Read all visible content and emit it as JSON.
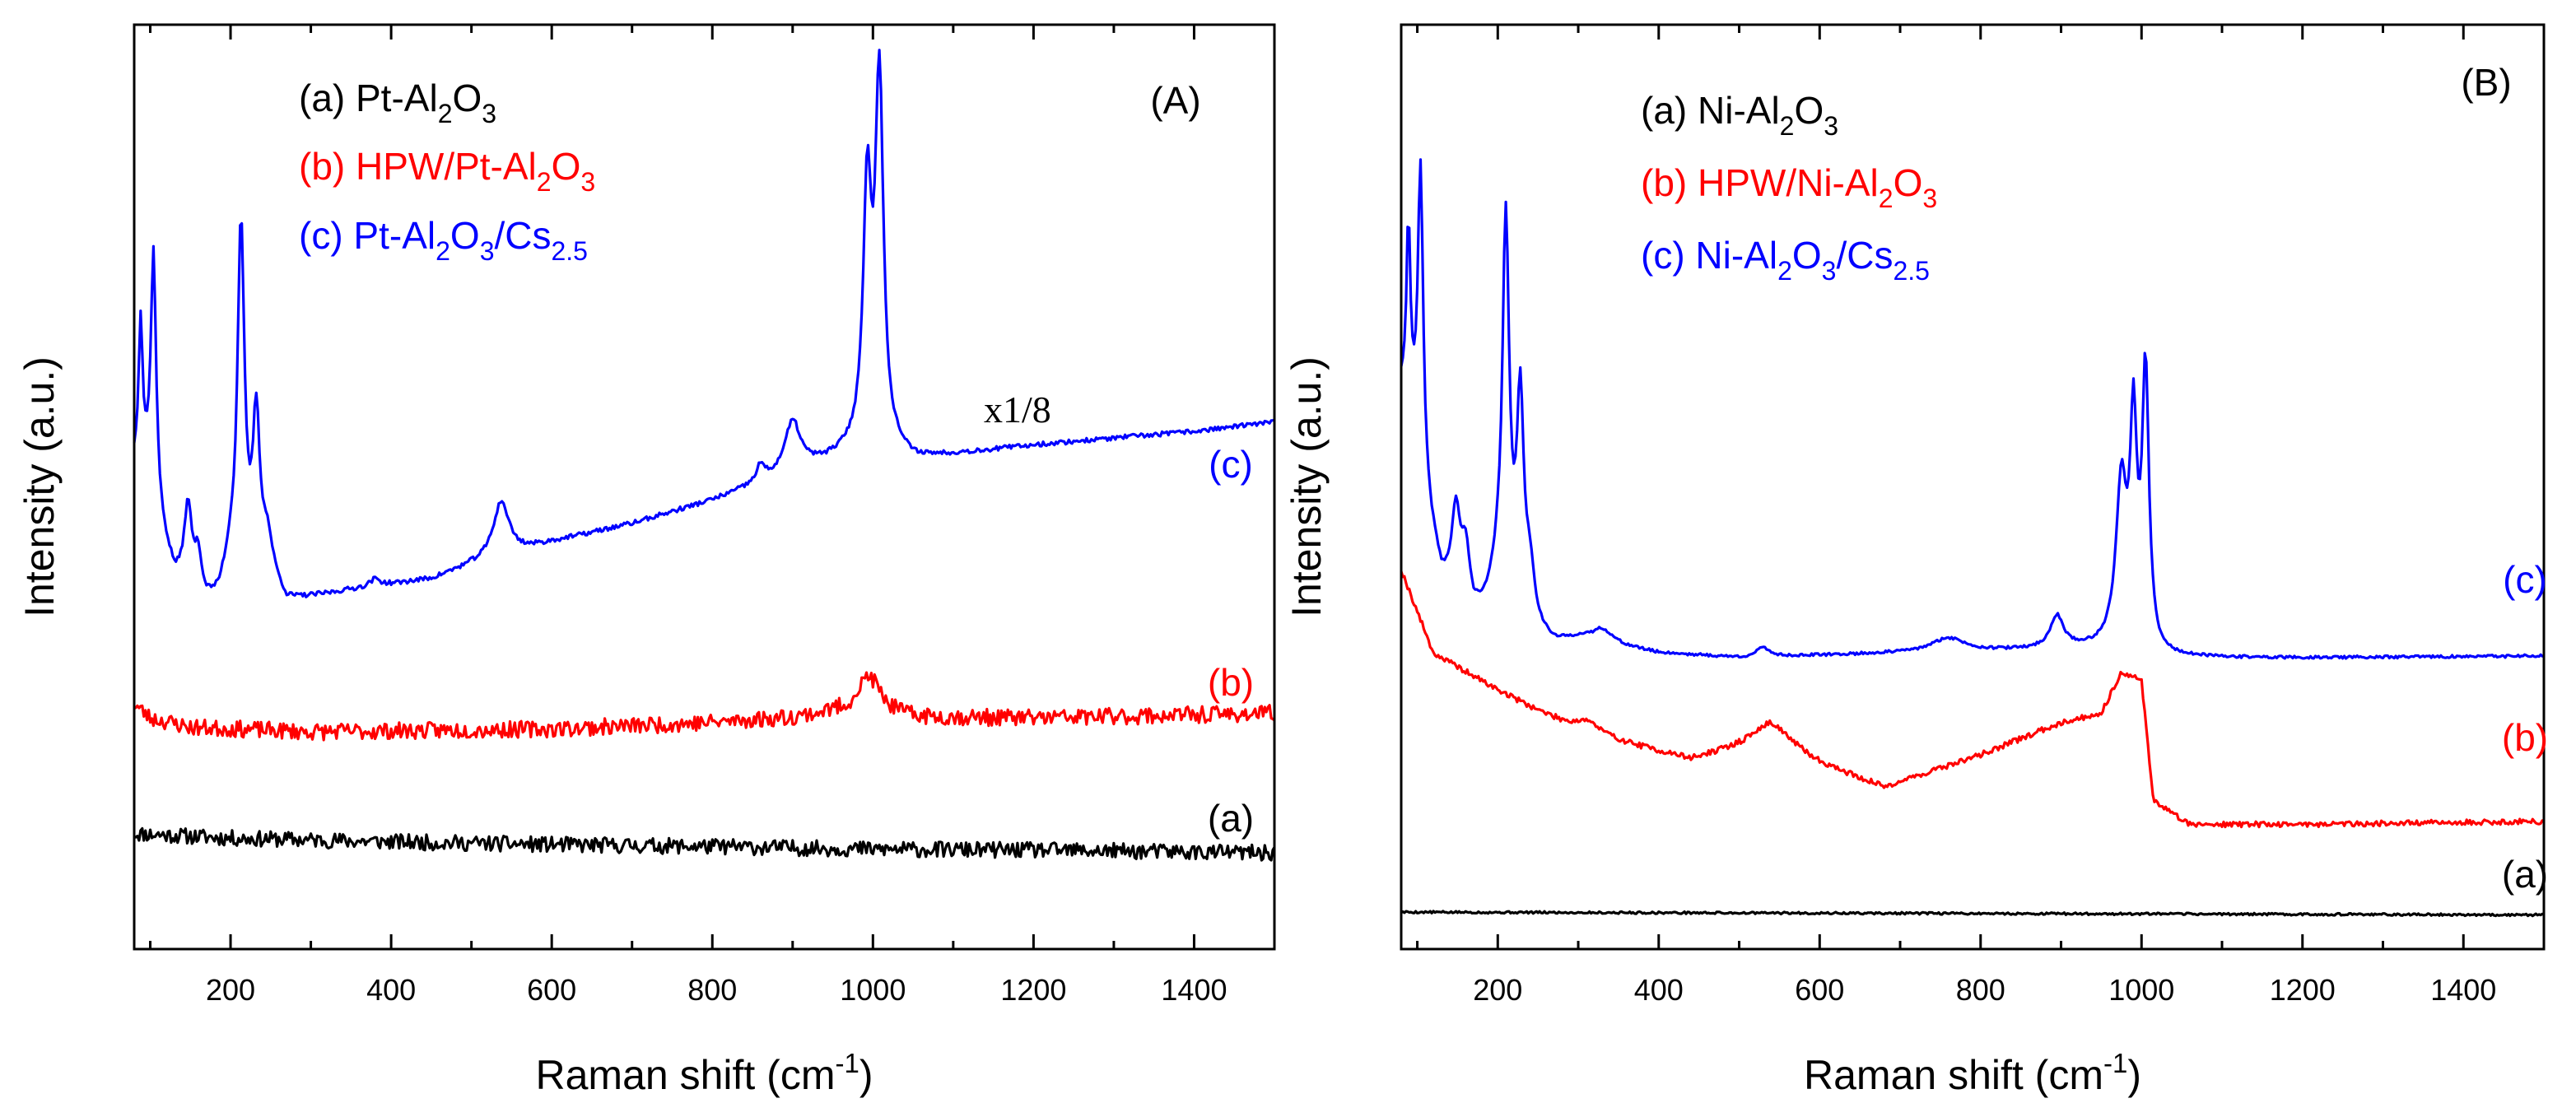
{
  "chart_data": [
    {
      "panel": "(A)",
      "type": "line",
      "xlabel": "Raman shift (cm",
      "xlabel_sup": "-1",
      "xlabel_close": ")",
      "ylabel": "Intensity (a.u.)",
      "xlim": [
        80,
        1500
      ],
      "ylim": [
        0,
        100
      ],
      "xticks": [
        200,
        400,
        600,
        800,
        1000,
        1200,
        1400
      ],
      "y_ticks_shown": false,
      "legend_position": "top-left",
      "legend": [
        {
          "prefix": "(a) Pt-Al",
          "s1": "2",
          "mid": "O",
          "s2": "3",
          "mid2": "",
          "s3": "",
          "color": "#000000"
        },
        {
          "prefix": "(b) HPW/Pt-Al",
          "s1": "2",
          "mid": "O",
          "s2": "3",
          "mid2": "",
          "s3": "",
          "color": "#ff0000"
        },
        {
          "prefix": "(c) Pt-Al",
          "s1": "2",
          "mid": "O",
          "s2": "3",
          "mid2": "/Cs",
          "s3": "2.5",
          "color": "#0000ff"
        }
      ],
      "annotations": [
        {
          "text": "x1/8",
          "at_x": 1180,
          "at_y": 57
        }
      ],
      "series": [
        {
          "name": "(a) Pt-Al2O3",
          "label": "(a)",
          "color": "#000000",
          "noise": 0.85,
          "seed": 11,
          "x": [
            80,
            200,
            400,
            600,
            800,
            1000,
            1200,
            1400,
            1500
          ],
          "y": [
            12.5,
            12.0,
            11.6,
            11.3,
            11.1,
            10.8,
            10.7,
            10.5,
            10.4
          ],
          "peaks": []
        },
        {
          "name": "(b) HPW/Pt-Al2O3",
          "label": "(b)",
          "color": "#ff0000",
          "noise": 0.9,
          "seed": 23,
          "x": [
            80,
            100,
            150,
            300,
            600,
            800,
            900,
            950,
            1050,
            1200,
            1500
          ],
          "y": [
            26.5,
            25.0,
            24.0,
            23.5,
            23.8,
            24.5,
            25.0,
            25.5,
            25.0,
            25.0,
            25.5
          ],
          "peaks": [
            {
              "c": 995,
              "h": 4.2,
              "w": 18
            }
          ]
        },
        {
          "name": "(c) Pt-Al2O3/Cs2.5",
          "label": "(c)",
          "color": "#0000ff",
          "noise": 0.25,
          "seed": 37,
          "x": [
            80,
            95,
            110,
            130,
            165,
            185,
            200,
            250,
            270,
            300,
            350,
            450,
            500,
            600,
            700,
            800,
            850,
            950,
            1000,
            1050,
            1200,
            1400,
            1500
          ],
          "y": [
            52,
            51,
            46,
            40,
            36.5,
            38,
            42,
            40,
            37.5,
            38.0,
            38.8,
            40.0,
            41.5,
            44,
            46,
            48.5,
            50,
            53,
            55,
            53,
            54.5,
            56.0,
            57.0
          ],
          "peaks": [
            {
              "c": 88,
              "h": 16,
              "w": 3
            },
            {
              "c": 104,
              "h": 27,
              "w": 4
            },
            {
              "c": 147,
              "h": 9,
              "w": 6
            },
            {
              "c": 160,
              "h": 5,
              "w": 6
            },
            {
              "c": 213,
              "h": 37,
              "w": 5
            },
            {
              "c": 232,
              "h": 16,
              "w": 5
            },
            {
              "c": 245,
              "h": 4,
              "w": 8
            },
            {
              "c": 380,
              "h": 0.8,
              "w": 8
            },
            {
              "c": 537,
              "h": 6,
              "w": 12
            },
            {
              "c": 860,
              "h": 1.8,
              "w": 6
            },
            {
              "c": 900,
              "h": 5.5,
              "w": 12
            },
            {
              "c": 993,
              "h": 27,
              "w": 6
            },
            {
              "c": 1008,
              "h": 39,
              "w": 6
            }
          ]
        }
      ]
    },
    {
      "panel": "(B)",
      "type": "line",
      "xlabel": "Raman shift (cm",
      "xlabel_sup": "-1",
      "xlabel_close": ")",
      "ylabel": "Intensity (a.u.)",
      "xlim": [
        80,
        1500
      ],
      "ylim": [
        0,
        100
      ],
      "xticks": [
        200,
        400,
        600,
        800,
        1000,
        1200,
        1400
      ],
      "y_ticks_shown": false,
      "legend_position": "top-left",
      "legend": [
        {
          "prefix": "(a) Ni-Al",
          "s1": "2",
          "mid": "O",
          "s2": "3",
          "mid2": "",
          "s3": "",
          "color": "#000000"
        },
        {
          "prefix": "(b) HPW/Ni-Al",
          "s1": "2",
          "mid": "O",
          "s2": "3",
          "mid2": "",
          "s3": "",
          "color": "#ff0000"
        },
        {
          "prefix": "(c) Ni-Al",
          "s1": "2",
          "mid": "O",
          "s2": "3",
          "mid2": "/Cs",
          "s3": "2.5",
          "color": "#0000ff"
        }
      ],
      "annotations": [],
      "series": [
        {
          "name": "(a) Ni-Al2O3",
          "label": "(a)",
          "color": "#000000",
          "noise": 0.12,
          "seed": 5,
          "x": [
            80,
            1500
          ],
          "y": [
            4.0,
            3.7
          ],
          "peaks": []
        },
        {
          "name": "(b) HPW/Ni-Al2O3",
          "label": "(b)",
          "color": "#ff0000",
          "noise": 0.3,
          "seed": 19,
          "x": [
            80,
            120,
            200,
            300,
            440,
            540,
            600,
            680,
            800,
            900,
            950,
            975,
            1000,
            1015,
            1060,
            1200,
            1500
          ],
          "y": [
            41,
            32,
            28,
            23.5,
            20.5,
            22.5,
            20,
            17.5,
            21,
            24.5,
            25.5,
            30,
            29,
            16,
            13.5,
            13.5,
            13.8
          ],
          "peaks": [
            {
              "c": 310,
              "h": 1.5,
              "w": 20
            },
            {
              "c": 540,
              "h": 2,
              "w": 30
            }
          ]
        },
        {
          "name": "(c) Ni-Al2O3/Cs2.5",
          "label": "(c)",
          "color": "#0000ff",
          "noise": 0.15,
          "seed": 41,
          "x": [
            80,
            95,
            110,
            130,
            170,
            185,
            200,
            250,
            270,
            300,
            400,
            500,
            700,
            800,
            950,
            1000,
            1020,
            1200,
            1500
          ],
          "y": [
            60,
            56,
            48,
            40,
            36,
            37,
            40,
            34,
            33,
            33.5,
            32.0,
            31.5,
            32,
            32.2,
            32.5,
            33.0,
            31.5,
            31.5,
            31.7
          ],
          "peaks": [
            {
              "c": 89,
              "h": 20,
              "w": 3
            },
            {
              "c": 104,
              "h": 33,
              "w": 4
            },
            {
              "c": 148,
              "h": 9,
              "w": 6
            },
            {
              "c": 160,
              "h": 6,
              "w": 6
            },
            {
              "c": 210,
              "h": 40,
              "w": 5
            },
            {
              "c": 228,
              "h": 22,
              "w": 5
            },
            {
              "c": 240,
              "h": 5,
              "w": 7
            },
            {
              "c": 330,
              "h": 1.5,
              "w": 15
            },
            {
              "c": 530,
              "h": 1.0,
              "w": 10
            },
            {
              "c": 760,
              "h": 1.5,
              "w": 25
            },
            {
              "c": 895,
              "h": 3.5,
              "w": 10
            },
            {
              "c": 975,
              "h": 17,
              "w": 8
            },
            {
              "c": 990,
              "h": 22,
              "w": 5
            },
            {
              "c": 1005,
              "h": 29,
              "w": 5
            }
          ]
        }
      ]
    }
  ]
}
